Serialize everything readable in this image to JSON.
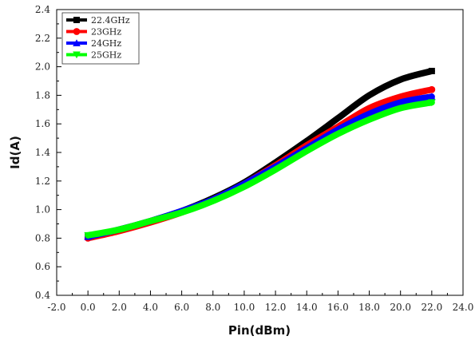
{
  "chart_data": {
    "type": "line",
    "title": "",
    "xlabel": "Pin(dBm)",
    "ylabel": "Id(A)",
    "xlim": [
      -2.0,
      24.0
    ],
    "ylim": [
      0.4,
      2.4
    ],
    "x_ticks": [
      -2.0,
      0.0,
      2.0,
      4.0,
      6.0,
      8.0,
      10.0,
      12.0,
      14.0,
      16.0,
      18.0,
      20.0,
      22.0,
      24.0
    ],
    "x_tick_labels": [
      "-2.0",
      "0.0",
      "2.0",
      "4.0",
      "6.0",
      "8.0",
      "10.0",
      "12.0",
      "14.0",
      "16.0",
      "18.0",
      "20.0",
      "22.0",
      "24.0"
    ],
    "y_ticks": [
      0.4,
      0.6,
      0.8,
      1.0,
      1.2,
      1.4,
      1.6,
      1.8,
      2.0,
      2.2,
      2.4
    ],
    "y_tick_labels": [
      "0.4",
      "0.6",
      "0.8",
      "1.0",
      "1.2",
      "1.4",
      "1.6",
      "1.8",
      "2.0",
      "2.2",
      "2.4"
    ],
    "grid": false,
    "legend_position": "top-left",
    "x": [
      0,
      2,
      4,
      6,
      8,
      10,
      12,
      14,
      16,
      18,
      20,
      22
    ],
    "series": [
      {
        "name": "22.4GHz",
        "color": "#000000",
        "marker": "square",
        "values": [
          0.81,
          0.86,
          0.92,
          0.99,
          1.08,
          1.19,
          1.33,
          1.48,
          1.64,
          1.8,
          1.91,
          1.97
        ]
      },
      {
        "name": "23GHz",
        "color": "#ff0000",
        "marker": "circle",
        "values": [
          0.8,
          0.85,
          0.91,
          0.98,
          1.07,
          1.18,
          1.31,
          1.45,
          1.58,
          1.71,
          1.79,
          1.84
        ]
      },
      {
        "name": "24GHz",
        "color": "#0000ff",
        "marker": "triangle-up",
        "values": [
          0.81,
          0.86,
          0.92,
          0.99,
          1.07,
          1.18,
          1.3,
          1.43,
          1.56,
          1.67,
          1.75,
          1.79
        ]
      },
      {
        "name": "25GHz",
        "color": "#00ff00",
        "marker": "triangle-down",
        "values": [
          0.82,
          0.86,
          0.92,
          0.98,
          1.06,
          1.16,
          1.28,
          1.41,
          1.53,
          1.63,
          1.71,
          1.75
        ]
      }
    ]
  }
}
